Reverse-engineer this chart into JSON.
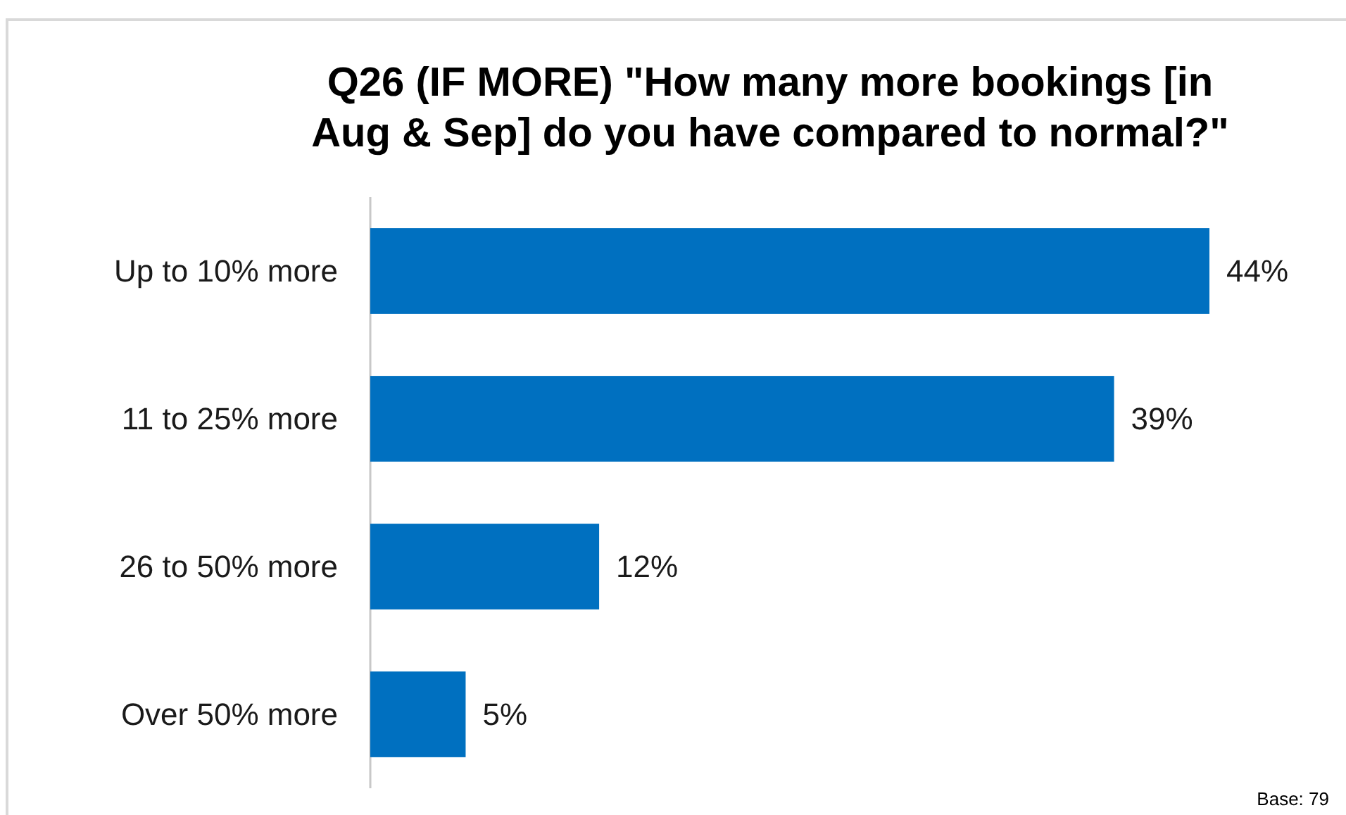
{
  "chart_data": {
    "type": "bar",
    "orientation": "horizontal",
    "title": "Q26 (IF MORE) \"How many more bookings [in Aug & Sep] do you have compared to normal?\"",
    "categories": [
      "Up to 10% more",
      "11 to 25% more",
      "26 to 50% more",
      "Over 50% more"
    ],
    "values": [
      44,
      39,
      12,
      5
    ],
    "value_labels": [
      "44%",
      "39%",
      "12%",
      "5%"
    ],
    "color": "#0070c0",
    "annotations": [
      "Base: 79"
    ]
  }
}
